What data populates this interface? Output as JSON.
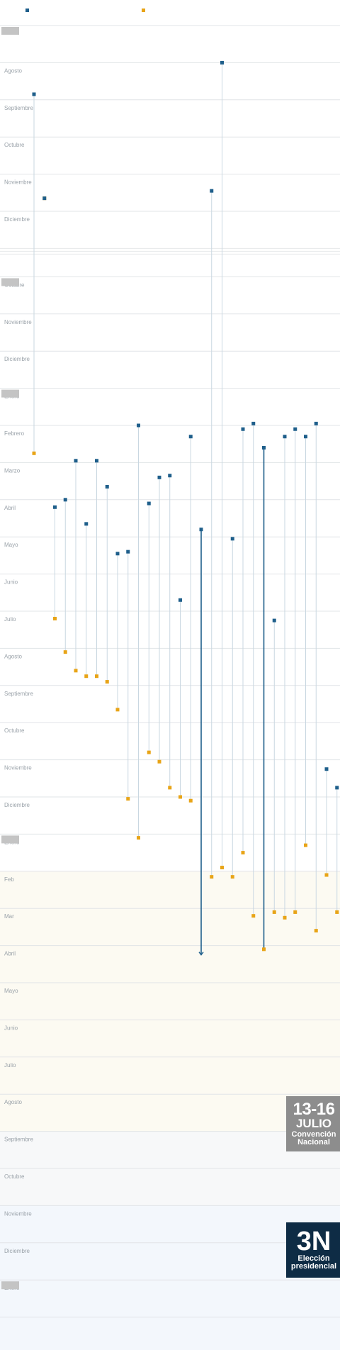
{
  "chart_data": {
    "type": "timeline",
    "title": "",
    "month_labels": [
      "",
      "Agosto",
      "Septiembre",
      "Octubre",
      "Noviembre",
      "Diciembre",
      "Octubre",
      "Noviembre",
      "Diciembre",
      "Enero",
      "Febrero",
      "Marzo",
      "Abril",
      "Mayo",
      "Junio",
      "Julio",
      "Agosto",
      "Septiembre",
      "Octubre",
      "Noviembre",
      "Diciembre",
      "Enero",
      "Feb",
      "Mar",
      "Abril",
      "Mayo",
      "Junio",
      "Julio",
      "Agosto",
      "Septiembre",
      "Octubre",
      "Noviembre",
      "Diciembre",
      "Enero",
      ""
    ],
    "gap_after_row": 5,
    "year_marker_rows": [
      0,
      6,
      9,
      21,
      33
    ],
    "phase_bands": [
      {
        "from_row": 22,
        "to_row": 29,
        "color": "#fcfaf2"
      },
      {
        "from_row": 29,
        "to_row": 31,
        "color": "#f7f8f9"
      },
      {
        "from_row": 31,
        "to_row": 35,
        "color": "#f3f7fc"
      }
    ],
    "legend": [
      {
        "label": "",
        "color": "#1f5f8b"
      },
      {
        "label": "",
        "color": "#e8a417"
      }
    ],
    "colors": {
      "start": "#1f5f8b",
      "end": "#e8a417",
      "line": "#c9d7e1",
      "active": "#1f5f8b"
    },
    "series": [
      {
        "start": 1.85,
        "end": 10.75,
        "active": false
      },
      {
        "start": 4.65,
        "end": 4.65,
        "active": false
      },
      {
        "start": 12.2,
        "end": 15.2,
        "active": false
      },
      {
        "start": 12.0,
        "end": 16.1,
        "active": false
      },
      {
        "start": 10.95,
        "end": 16.6,
        "active": false
      },
      {
        "start": 12.65,
        "end": 16.75,
        "active": false
      },
      {
        "start": 10.95,
        "end": 16.75,
        "active": false
      },
      {
        "start": 11.65,
        "end": 16.9,
        "active": false
      },
      {
        "start": 13.45,
        "end": 17.65,
        "active": false
      },
      {
        "start": 13.4,
        "end": 20.05,
        "active": false
      },
      {
        "start": 10.0,
        "end": 21.1,
        "active": false
      },
      {
        "start": 12.1,
        "end": 18.8,
        "active": false
      },
      {
        "start": 11.4,
        "end": 19.05,
        "active": false
      },
      {
        "start": 11.35,
        "end": 19.75,
        "active": false
      },
      {
        "start": 14.7,
        "end": 20.0,
        "active": false
      },
      {
        "start": 10.3,
        "end": 20.1,
        "active": false
      },
      {
        "start": 12.8,
        "end": 24.25,
        "active": true
      },
      {
        "start": 4.45,
        "end": 22.15,
        "active": false
      },
      {
        "start": 1.0,
        "end": 21.9,
        "active": false
      },
      {
        "start": 13.05,
        "end": 22.15,
        "active": false
      },
      {
        "start": 10.1,
        "end": 21.5,
        "active": false
      },
      {
        "start": 9.95,
        "end": 23.2,
        "active": false
      },
      {
        "start": 10.6,
        "end": 24.1,
        "active": true
      },
      {
        "start": 15.25,
        "end": 23.1,
        "active": false
      },
      {
        "start": 10.3,
        "end": 23.25,
        "active": false
      },
      {
        "start": 10.1,
        "end": 23.1,
        "active": false
      },
      {
        "start": 10.3,
        "end": 21.3,
        "active": false
      },
      {
        "start": 9.95,
        "end": 23.6,
        "active": false
      },
      {
        "start": 19.25,
        "end": 22.1,
        "active": false
      },
      {
        "start": 19.75,
        "end": 23.1,
        "active": false
      }
    ]
  },
  "badges": {
    "convention": {
      "date": "13-16",
      "month": "JULIO",
      "line1": "Convención",
      "line2": "Nacional"
    },
    "election": {
      "date": "3N",
      "line1": "Elección",
      "line2": "presidencial"
    }
  }
}
